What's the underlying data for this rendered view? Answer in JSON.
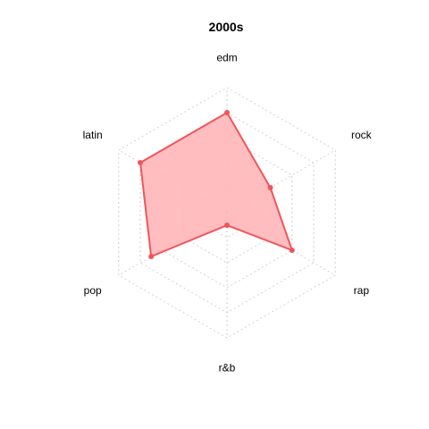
{
  "chart_data": {
    "type": "radar",
    "title": "2000s",
    "categories": [
      "edm",
      "rock",
      "rap",
      "r&b",
      "pop",
      "latin"
    ],
    "series": [
      {
        "values": [
          0.8,
          0.4,
          0.6,
          0.1,
          0.7,
          0.8
        ]
      }
    ],
    "range": [
      0,
      1
    ],
    "grid_levels": 5,
    "grid": true,
    "colors": {
      "line": "#f0555a",
      "fill": "#ffb6b9",
      "grid": "#cfcfcf"
    }
  }
}
